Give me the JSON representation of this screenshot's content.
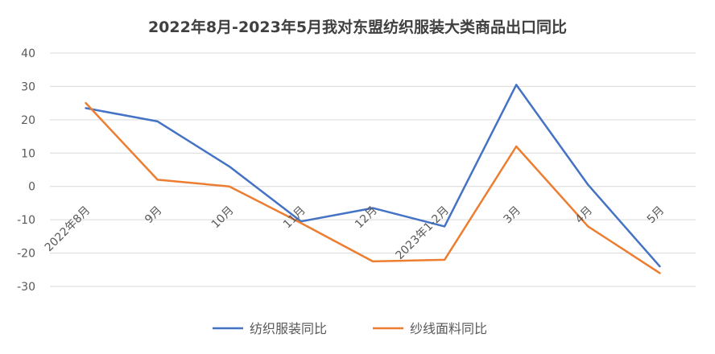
{
  "chart_data": {
    "type": "line",
    "title": "2022年8月-2023年5月我对东盟纺织服装大类商品出口同比",
    "categories": [
      "2022年8月",
      "9月",
      "10月",
      "11月",
      "12月",
      "2023年1-2月",
      "3月",
      "4月",
      "5月"
    ],
    "yticks": [
      "40",
      "30",
      "20",
      "10",
      "0",
      "-10",
      "-20",
      "-30"
    ],
    "ylim": [
      -30,
      40
    ],
    "grid": true,
    "legend_position": "bottom",
    "series": [
      {
        "name": "纺织服装同比",
        "color": "#4472C4",
        "values": [
          23.5,
          19.5,
          6,
          -10.5,
          -6.5,
          -12,
          30.5,
          0.5,
          -24
        ]
      },
      {
        "name": "纱线面料同比",
        "color": "#ED7D31",
        "values": [
          25,
          2,
          0,
          -11,
          -22.5,
          -22,
          12,
          -12,
          -26
        ]
      }
    ]
  }
}
